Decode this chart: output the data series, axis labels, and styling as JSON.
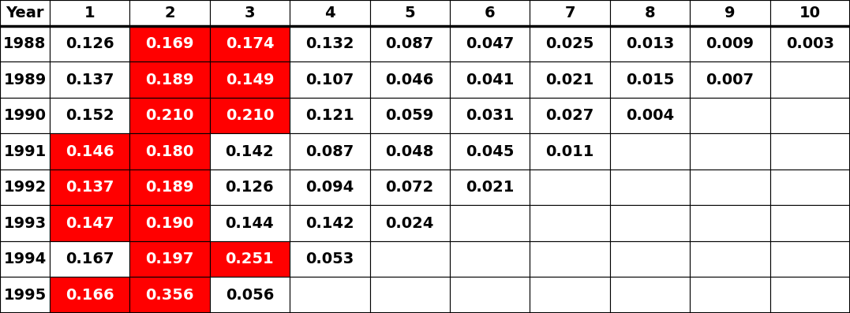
{
  "headers": [
    "Year",
    "1",
    "2",
    "3",
    "4",
    "5",
    "6",
    "7",
    "8",
    "9",
    "10"
  ],
  "rows": [
    {
      "year": "1988",
      "values": [
        "0.126",
        "0.169",
        "0.174",
        "0.132",
        "0.087",
        "0.047",
        "0.025",
        "0.013",
        "0.009",
        "0.003"
      ]
    },
    {
      "year": "1989",
      "values": [
        "0.137",
        "0.189",
        "0.149",
        "0.107",
        "0.046",
        "0.041",
        "0.021",
        "0.015",
        "0.007",
        ""
      ]
    },
    {
      "year": "1990",
      "values": [
        "0.152",
        "0.210",
        "0.210",
        "0.121",
        "0.059",
        "0.031",
        "0.027",
        "0.004",
        "",
        ""
      ]
    },
    {
      "year": "1991",
      "values": [
        "0.146",
        "0.180",
        "0.142",
        "0.087",
        "0.048",
        "0.045",
        "0.011",
        "",
        "",
        ""
      ]
    },
    {
      "year": "1992",
      "values": [
        "0.137",
        "0.189",
        "0.126",
        "0.094",
        "0.072",
        "0.021",
        "",
        "",
        "",
        ""
      ]
    },
    {
      "year": "1993",
      "values": [
        "0.147",
        "0.190",
        "0.144",
        "0.142",
        "0.024",
        "",
        "",
        "",
        "",
        ""
      ]
    },
    {
      "year": "1994",
      "values": [
        "0.167",
        "0.197",
        "0.251",
        "0.053",
        "",
        "",
        "",
        "",
        "",
        ""
      ]
    },
    {
      "year": "1995",
      "values": [
        "0.166",
        "0.356",
        "0.056",
        "",
        "",
        "",
        "",
        "",
        "",
        ""
      ]
    }
  ],
  "highlighted": [
    [
      false,
      true,
      true,
      false,
      false,
      false,
      false,
      false,
      false,
      false
    ],
    [
      false,
      true,
      true,
      false,
      false,
      false,
      false,
      false,
      false,
      false
    ],
    [
      false,
      true,
      true,
      false,
      false,
      false,
      false,
      false,
      false,
      false
    ],
    [
      true,
      true,
      false,
      false,
      false,
      false,
      false,
      false,
      false,
      false
    ],
    [
      true,
      true,
      false,
      false,
      false,
      false,
      false,
      false,
      false,
      false
    ],
    [
      true,
      true,
      false,
      false,
      false,
      false,
      false,
      false,
      false,
      false
    ],
    [
      false,
      true,
      true,
      false,
      false,
      false,
      false,
      false,
      false,
      false
    ],
    [
      true,
      true,
      false,
      false,
      false,
      false,
      false,
      false,
      false,
      false
    ]
  ],
  "highlight_color": "#FF0000",
  "normal_text_color": "#000000",
  "bg_color": "#FFFFFF",
  "border_color": "#000000",
  "thick_border_color": "#000000",
  "font_size": 14,
  "header_font_size": 14,
  "col_widths_raw": [
    0.62,
    1,
    1,
    1,
    1,
    1,
    1,
    1,
    1,
    1,
    1
  ],
  "row_heights_raw": [
    0.72,
    1,
    1,
    1,
    1,
    1,
    1,
    1,
    1
  ]
}
